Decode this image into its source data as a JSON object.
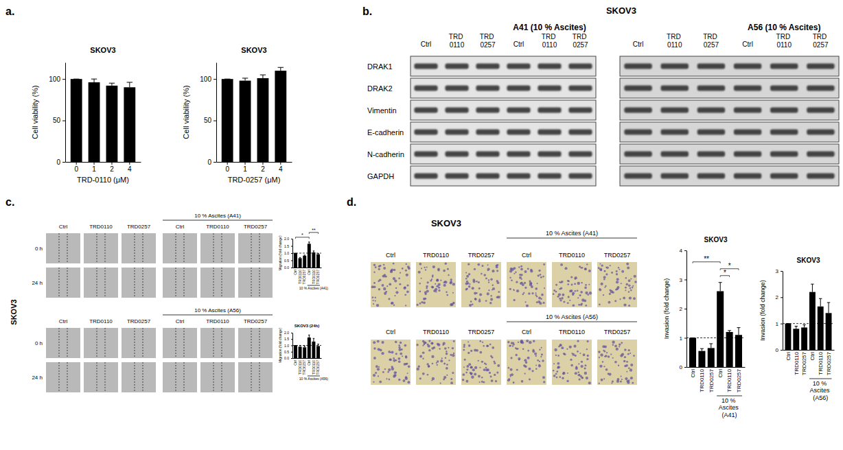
{
  "chart_data": [
    {
      "type": "bar",
      "title": "SKOV3",
      "x_label": "TRD-0110 (μM)",
      "y_label": "Cell viability (%)",
      "categories": [
        "0",
        "1",
        "2",
        "4"
      ],
      "values": [
        100,
        96,
        92,
        90
      ],
      "errors": [
        0,
        4,
        3,
        6
      ],
      "color": "#000000",
      "ylim": [
        0,
        120
      ],
      "yticks": [
        0,
        50,
        100
      ]
    },
    {
      "type": "bar",
      "title": "SKOV3",
      "x_label": "TRD-0257 (μM)",
      "y_label": "Cell viability (%)",
      "categories": [
        "0",
        "1",
        "2",
        "4"
      ],
      "values": [
        100,
        98,
        101,
        110
      ],
      "errors": [
        0,
        3,
        4,
        4
      ],
      "color": "#000000",
      "ylim": [
        0,
        120
      ],
      "yticks": [
        0,
        50,
        100
      ]
    },
    {
      "type": "bar",
      "y_label": "Migration (fold change)",
      "categories": [
        "Ctrl",
        "TRD0110",
        "TRD0257",
        "Ctrl",
        "TRD0110",
        "TRD0257"
      ],
      "values": [
        1.0,
        0.65,
        0.82,
        1.65,
        1.05,
        0.92
      ],
      "errors": [
        0,
        0.05,
        0.04,
        0.12,
        0.1,
        0.05
      ],
      "color": "#000000",
      "ylim": [
        0,
        2
      ],
      "yticks": [
        {
          "value": 0,
          "label": "0.0"
        },
        {
          "value": 0.5,
          "label": "0.5"
        },
        {
          "value": 1,
          "label": "1.0"
        },
        {
          "value": 1.5,
          "label": "1.5"
        },
        {
          "value": 2,
          "label": "2.0"
        }
      ],
      "reference": 1,
      "groups": [
        {
          "label": "10 % Ascites (A41)",
          "members": [
            3,
            4,
            5
          ]
        }
      ],
      "annotations": [
        {
          "text": "*",
          "between": [
            0,
            3
          ]
        },
        {
          "text": "**",
          "between": [
            3,
            5
          ]
        }
      ]
    },
    {
      "type": "bar",
      "title": "SKOV3 (24h)",
      "y_label": "Migration (fold change)",
      "categories": [
        "Ctrl",
        "TRD0110",
        "TRD0257",
        "Ctrl",
        "TRD0110",
        "TRD0257"
      ],
      "values": [
        1.0,
        0.9,
        0.85,
        1.62,
        1.3,
        0.95
      ],
      "errors": [
        0,
        0.1,
        0.1,
        0.2,
        0.25,
        0.15
      ],
      "color": "#000000",
      "ylim": [
        0,
        2
      ],
      "yticks": [
        {
          "value": 0,
          "label": "0.0"
        },
        {
          "value": 0.5,
          "label": "0.5"
        },
        {
          "value": 1,
          "label": "1.0"
        },
        {
          "value": 1.5,
          "label": "1.5"
        },
        {
          "value": 2,
          "label": "2.0"
        }
      ],
      "reference": 1,
      "groups": [
        {
          "label": "10 % Ascites (A56)",
          "members": [
            3,
            4,
            5
          ]
        }
      ]
    },
    {
      "type": "bar",
      "title": "SKOV3",
      "y_label": "Invasion (fold change)",
      "categories": [
        "Ctrl",
        "TRD0110",
        "TRD0257",
        "Ctrl",
        "TRD0110",
        "TRD0257"
      ],
      "values": [
        1.0,
        0.55,
        0.65,
        2.6,
        1.2,
        1.1
      ],
      "errors": [
        0,
        0.08,
        0.15,
        0.3,
        0.05,
        0.25
      ],
      "color": "#000000",
      "ylim": [
        0,
        4
      ],
      "yticks": [
        0,
        1,
        2,
        3,
        4
      ],
      "reference": 1,
      "groups": [
        {
          "label": "10 % Ascites (A41)",
          "members": [
            3,
            4,
            5
          ]
        }
      ],
      "annotations": [
        {
          "text": "*",
          "between": [
            3,
            4
          ]
        },
        {
          "text": "*",
          "between": [
            3,
            5
          ]
        },
        {
          "text": "**",
          "between": [
            0,
            3
          ]
        }
      ]
    },
    {
      "type": "bar",
      "title": "SKOV3",
      "y_label": "Invasion (fold change)",
      "categories": [
        "Ctrl",
        "TRD0110",
        "TRD0257",
        "Ctrl",
        "TRD0110",
        "TRD0257"
      ],
      "values": [
        1.0,
        0.8,
        0.85,
        2.2,
        1.65,
        1.4
      ],
      "errors": [
        0,
        0.1,
        0.1,
        0.3,
        0.3,
        0.4
      ],
      "color": "#000000",
      "ylim": [
        0,
        3
      ],
      "yticks": [
        0,
        1,
        2,
        3
      ],
      "reference": 1,
      "groups": [
        {
          "label": "10 % Ascites (A56)",
          "members": [
            3,
            4,
            5
          ]
        }
      ]
    }
  ],
  "panel_labels": [
    "a.",
    "b.",
    "c.",
    "d."
  ],
  "blot": {
    "title": "SKOV3",
    "lanes": [
      "Ctrl",
      "TRD 0110",
      "TRD 0257",
      "Ctrl",
      "TRD 0110",
      "TRD 0257"
    ],
    "rows": [
      "DRAK1",
      "DRAK2",
      "Vimentin",
      "E-cadherin",
      "N-cadherin",
      "GAPDH"
    ],
    "panels": [
      {
        "label": "A41 (10 % Ascites)",
        "members": [
          3,
          4,
          5
        ]
      },
      {
        "label": "A56 (10 % Ascites)",
        "members": [
          3,
          4,
          5
        ]
      }
    ]
  },
  "migration": {
    "cell_line": "SKOV3",
    "lanes": [
      "Ctrl",
      "TRD0110",
      "TRD0257",
      "Ctrl",
      "TRD0110",
      "TRD0257"
    ],
    "times": [
      "0 h",
      "24 h"
    ],
    "groups": [
      "10 % Ascites (A41)",
      "10 % Ascites (A56)"
    ]
  },
  "invasion": {
    "title": "SKOV3",
    "lanes": [
      "Ctrl",
      "TRD0110",
      "TRD0257",
      "Ctrl",
      "TRD0110",
      "TRD0257"
    ],
    "groups": [
      "10 % Ascites (A41)",
      "10 % Ascites (A56)"
    ]
  }
}
